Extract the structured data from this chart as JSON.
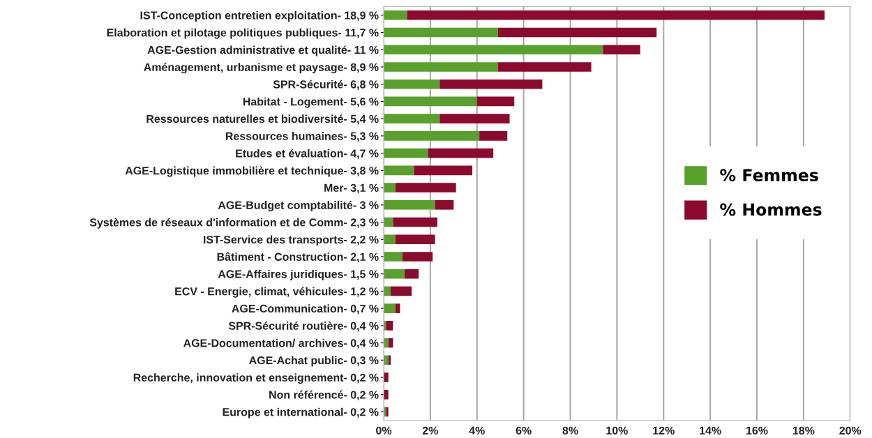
{
  "chart_data": {
    "type": "bar",
    "orientation": "horizontal",
    "stacked": true,
    "categories": [
      "IST-Conception entretien exploitation- 18,9 %",
      "Elaboration et pilotage politiques publiques- 11,7 %",
      "AGE-Gestion administrative et qualité- 11 %",
      "Aménagement, urbanisme et paysage- 8,9 %",
      "SPR-Sécurité- 6,8 %",
      "Habitat - Logement- 5,6 %",
      "Ressources naturelles et biodiversité- 5,4 %",
      "Ressources humaines- 5,3 %",
      "Etudes et évaluation- 4,7 %",
      "AGE-Logistique immobilière et technique- 3,8 %",
      "Mer- 3,1 %",
      "AGE-Budget comptabilité- 3 %",
      "Systèmes de réseaux d'information et de Comm- 2,3 %",
      "IST-Service des transports- 2,2 %",
      "Bâtiment - Construction- 2,1 %",
      "AGE-Affaires juridiques- 1,5 %",
      "ECV - Energie, climat, véhicules- 1,2 %",
      "AGE-Communication- 0,7 %",
      "SPR-Sécurité routière- 0,4 %",
      "AGE-Documentation/ archives- 0,4 %",
      "AGE-Achat public- 0,3 %",
      "Recherche, innovation et enseignement- 0,2 %",
      "Non référencé- 0,2 %",
      "Europe et international- 0,2 %"
    ],
    "series": [
      {
        "name": "% Femmes",
        "color": "#5aa02c",
        "values": [
          1.0,
          4.9,
          9.4,
          4.9,
          2.4,
          4.0,
          2.4,
          4.1,
          1.9,
          1.3,
          0.5,
          2.2,
          0.4,
          0.5,
          0.8,
          0.9,
          0.3,
          0.5,
          0.1,
          0.2,
          0.2,
          0,
          0,
          0.1
        ]
      },
      {
        "name": "% Hommes",
        "color": "#8b0a2e",
        "values": [
          17.9,
          6.8,
          1.6,
          4.0,
          4.4,
          1.6,
          3.0,
          1.2,
          2.8,
          2.5,
          2.6,
          0.8,
          1.9,
          1.7,
          1.3,
          0.6,
          0.9,
          0.2,
          0.3,
          0.2,
          0.1,
          0.2,
          0.2,
          0.1
        ]
      }
    ],
    "xlim": [
      0,
      20
    ],
    "xticks": [
      {
        "value": 0,
        "label": "0%"
      },
      {
        "value": 2,
        "label": "2%"
      },
      {
        "value": 4,
        "label": "4%"
      },
      {
        "value": 6,
        "label": "6%"
      },
      {
        "value": 8,
        "label": "8%"
      },
      {
        "value": 10,
        "label": "10%"
      },
      {
        "value": 12,
        "label": "12%"
      },
      {
        "value": 14,
        "label": "14%"
      },
      {
        "value": 16,
        "label": "16%"
      },
      {
        "value": 18,
        "label": "18%"
      },
      {
        "value": 20,
        "label": "20%"
      }
    ],
    "grid": "x",
    "legend": "right"
  }
}
